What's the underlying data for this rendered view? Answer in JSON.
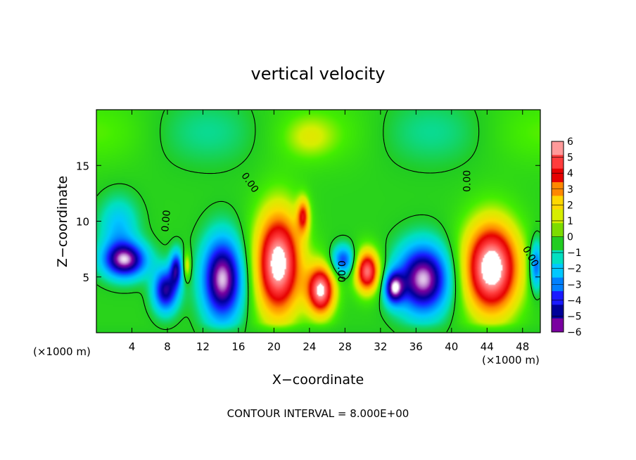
{
  "chart_data": {
    "type": "heatmap",
    "title": "vertical velocity",
    "xlabel": "X−coordinate",
    "ylabel": "Z−coordinate",
    "x_unit_label": "(×1000 m)",
    "y_unit_label": "(×1000 m)",
    "footer": "CONTOUR INTERVAL = 8.000E+00",
    "xlim": [
      0,
      50
    ],
    "ylim": [
      0,
      20
    ],
    "x_ticks": [
      4,
      8,
      12,
      16,
      20,
      24,
      28,
      32,
      36,
      40,
      44,
      48
    ],
    "x_tick_labels": [
      "4",
      "8",
      "12",
      "16",
      "20",
      "24",
      "28",
      "32",
      "36",
      "40",
      "44",
      "48"
    ],
    "y_ticks": [
      5,
      10,
      15
    ],
    "y_tick_labels": [
      "5",
      "10",
      "15"
    ],
    "contour_labels": [
      {
        "text": "0.00",
        "x": 17.0,
        "y": 13.3,
        "angle": 55
      },
      {
        "text": "0.00",
        "x": 8.2,
        "y": 10.0,
        "angle": -85
      },
      {
        "text": "0.00",
        "x": 27.2,
        "y": 5.5,
        "angle": 90
      },
      {
        "text": "0.00",
        "x": 42.1,
        "y": 13.6,
        "angle": -90
      },
      {
        "text": "0.00",
        "x": 48.6,
        "y": 6.7,
        "angle": 60
      }
    ],
    "colorbar": {
      "levels": [
        "6",
        "5",
        "4",
        "3",
        "2",
        "1",
        "0",
        "−1",
        "−2",
        "−3",
        "−4",
        "−5",
        "−6"
      ],
      "colors": [
        "#ff9a9a",
        "#ff3c3c",
        "#e60000",
        "#ff8800",
        "#ffd700",
        "#d6ee00",
        "#7cdc00",
        "#22cc22",
        "#00e0c0",
        "#00c8ff",
        "#0080ff",
        "#1a1aff",
        "#000099",
        "#7a00a0"
      ]
    },
    "background_color": "#44ee00",
    "features": [
      {
        "kind": "down",
        "x": 3.2,
        "y": 6.5,
        "rx": 2.8,
        "ry": 1.8,
        "peak": -6.5
      },
      {
        "kind": "down",
        "x": 7.8,
        "y": 3.8,
        "rx": 1.6,
        "ry": 2.2,
        "peak": -5.5
      },
      {
        "kind": "down",
        "x": 9.0,
        "y": 5.8,
        "rx": 0.8,
        "ry": 1.8,
        "peak": -4.5
      },
      {
        "kind": "down",
        "x": 14.2,
        "y": 4.8,
        "rx": 2.6,
        "ry": 4.2,
        "peak": -7.0
      },
      {
        "kind": "down",
        "x": 2.5,
        "y": 9.5,
        "rx": 2.5,
        "ry": 3.0,
        "peak": -2.3
      },
      {
        "kind": "down",
        "x": 27.8,
        "y": 6.5,
        "rx": 1.5,
        "ry": 1.5,
        "peak": -4.0
      },
      {
        "kind": "down",
        "x": 36.8,
        "y": 4.8,
        "rx": 3.4,
        "ry": 3.5,
        "peak": -7.0
      },
      {
        "kind": "down",
        "x": 33.5,
        "y": 4.0,
        "rx": 1.2,
        "ry": 1.6,
        "peak": -5.5
      },
      {
        "kind": "down",
        "x": 49.5,
        "y": 6.0,
        "rx": 0.8,
        "ry": 2.5,
        "peak": -4.0
      },
      {
        "kind": "up",
        "x": 20.5,
        "y": 6.2,
        "rx": 3.0,
        "ry": 5.5,
        "peak": 7.5
      },
      {
        "kind": "up",
        "x": 23.3,
        "y": 10.5,
        "rx": 0.8,
        "ry": 1.8,
        "peak": 4.0
      },
      {
        "kind": "up",
        "x": 25.3,
        "y": 3.8,
        "rx": 1.8,
        "ry": 2.6,
        "peak": 7.0
      },
      {
        "kind": "up",
        "x": 30.5,
        "y": 5.5,
        "rx": 1.6,
        "ry": 2.2,
        "peak": 6.5
      },
      {
        "kind": "up",
        "x": 44.5,
        "y": 5.8,
        "rx": 3.6,
        "ry": 4.8,
        "peak": 7.8
      },
      {
        "kind": "up",
        "x": 10.2,
        "y": 6.0,
        "rx": 0.5,
        "ry": 1.4,
        "peak": 2.5
      },
      {
        "kind": "up",
        "x": 24.0,
        "y": 17.5,
        "rx": 3.0,
        "ry": 2.0,
        "peak": 1.2
      }
    ]
  }
}
